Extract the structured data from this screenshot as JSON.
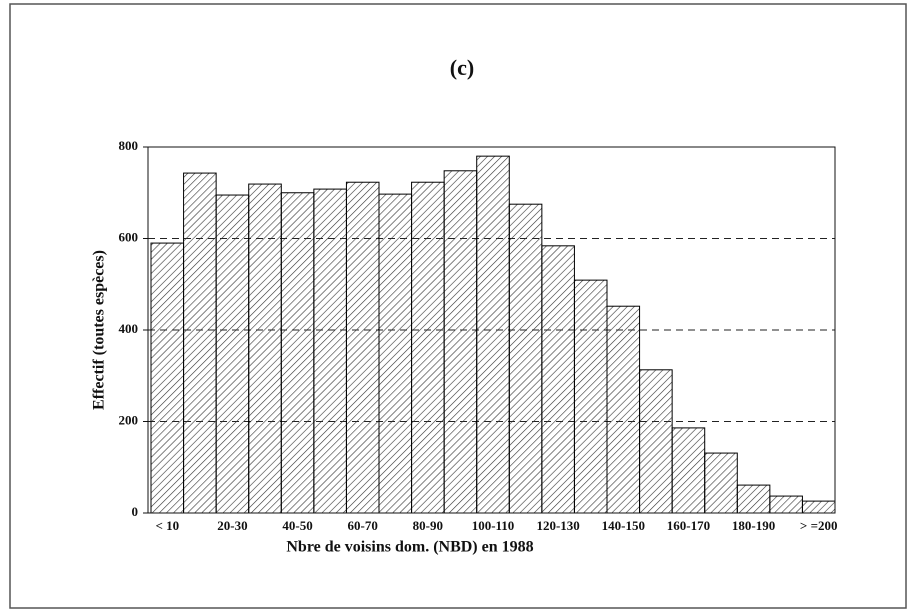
{
  "chart_data": {
    "type": "bar",
    "title": "(c)",
    "x_label": "Nbre de voisins dom. (NBD) en 1988",
    "y_label": "Effectif (toutes espèces)",
    "categories": [
      "< 10",
      null,
      "20-30",
      null,
      "40-50",
      null,
      "60-70",
      null,
      "80-90",
      null,
      "100-110",
      null,
      "120-130",
      null,
      "140-150",
      null,
      "160-170",
      null,
      "180-190",
      null,
      "> =200"
    ],
    "values": [
      590,
      743,
      695,
      719,
      700,
      708,
      723,
      697,
      723,
      748,
      780,
      675,
      584,
      509,
      452,
      313,
      186,
      131,
      61,
      37,
      26
    ],
    "color": "#000000",
    "ylim": [
      0,
      800
    ],
    "yticks": [
      0,
      200,
      400,
      600,
      800
    ],
    "grid": true
  }
}
